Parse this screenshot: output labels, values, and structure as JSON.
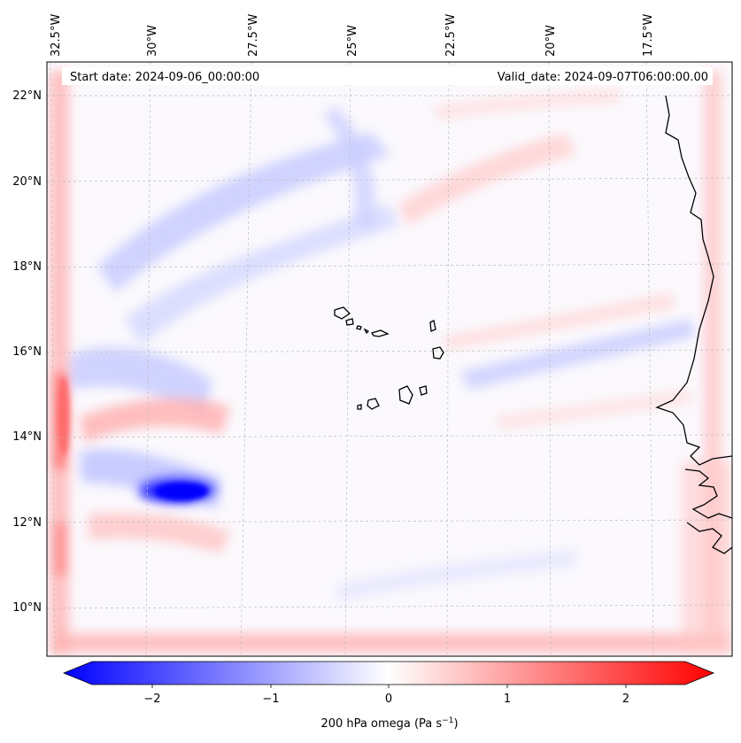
{
  "header": {
    "start_date": "Start date: 2024-09-06_00:00:00",
    "valid_date": "Valid_date: 2024-09-07T06:00:00.00"
  },
  "map": {
    "lon_labels": [
      "32.5°W",
      "30°W",
      "27.5°W",
      "25°W",
      "22.5°W",
      "20°W",
      "17.5°W"
    ],
    "lat_labels": [
      "22°N",
      "20°N",
      "18°N",
      "16°N",
      "14°N",
      "12°N",
      "10°N"
    ],
    "coastline_color": "#000000",
    "grid": "dotted"
  },
  "colorbar": {
    "ticks": [
      "−2",
      "−1",
      "0",
      "1",
      "2"
    ],
    "label_main": "200 hPa omega (Pa s",
    "label_sup": "−1",
    "label_end": ")",
    "range": [
      -2.7,
      2.7
    ],
    "colors": {
      "min": "#0000ff",
      "mid": "#ffffff",
      "max": "#ff0000"
    }
  }
}
